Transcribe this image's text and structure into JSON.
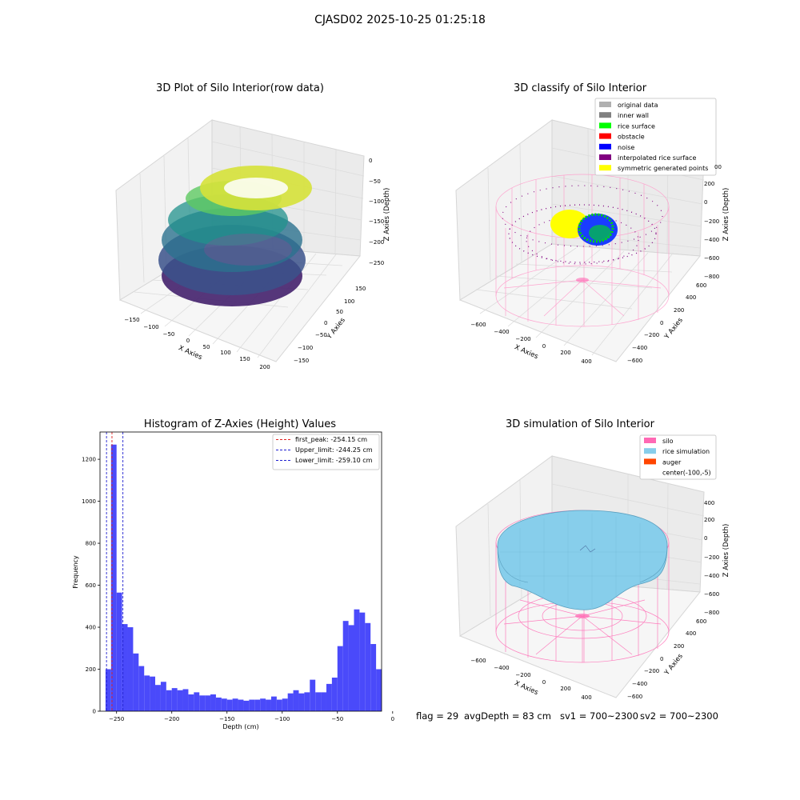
{
  "suptitle": "CJASD02 2025-10-25 01:25:18",
  "colors": {
    "hist_bar": "#4a4afa",
    "first_peak": "#e02020",
    "limits": "#2020d0",
    "silo": "#ff69b4",
    "rice": "#87ceeb",
    "auger": "#ff4500",
    "original": "#b0b0b0",
    "inner_wall": "#808080",
    "rice_surface": "#00ff00",
    "obstacle": "#ff0000",
    "noise": "#0000ff",
    "interpolated": "#800080",
    "symmetric": "#ffff00"
  },
  "panel1": {
    "title": "3D Plot of Silo Interior(row data)",
    "xlabel": "X Axies",
    "ylabel": "Y Axies",
    "zlabel": "Z Axies (Depth)",
    "xticks": [
      "−150",
      "−100",
      "−50",
      "0",
      "50",
      "100",
      "150",
      "200"
    ],
    "yticks": [
      "−150",
      "−100",
      "−50",
      "0",
      "50",
      "100",
      "150"
    ],
    "zticks": [
      "0",
      "−50",
      "−100",
      "−150",
      "−200",
      "−250"
    ]
  },
  "panel2": {
    "title": "3D classify of Silo Interior",
    "xlabel": "X Axies",
    "ylabel": "Y Axies",
    "zlabel": "Z Axies (Depth)",
    "xticks": [
      "−600",
      "−400",
      "−200",
      "0",
      "200",
      "400"
    ],
    "yticks": [
      "−600",
      "−400",
      "−200",
      "0",
      "200",
      "400",
      "600"
    ],
    "zticks": [
      "200",
      "0",
      "−200",
      "−400",
      "−600",
      "−800"
    ],
    "zticks_top_partial": "00",
    "legend": [
      {
        "label": "original data",
        "color": "#b0b0b0"
      },
      {
        "label": "inner wall",
        "color": "#808080"
      },
      {
        "label": "rice surface",
        "color": "#00ff00"
      },
      {
        "label": "obstacle",
        "color": "#ff0000"
      },
      {
        "label": "noise",
        "color": "#0000ff"
      },
      {
        "label": "interpolated rice surface",
        "color": "#800080"
      },
      {
        "label": "symmetric generated points",
        "color": "#ffff00"
      }
    ]
  },
  "panel4": {
    "title": "3D simulation of Silo Interior",
    "xlabel": "X Axies",
    "ylabel": "Y Axies",
    "zlabel": "Z Axies (Depth)",
    "xticks": [
      "−600",
      "−400",
      "−200",
      "0",
      "200",
      "400"
    ],
    "yticks": [
      "−600",
      "−400",
      "−200",
      "0",
      "200",
      "400",
      "600"
    ],
    "zticks": [
      "400",
      "200",
      "0",
      "−200",
      "−400",
      "−600",
      "−800"
    ],
    "legend": [
      {
        "label": "silo",
        "color": "#ff69b4"
      },
      {
        "label": "rice simulation",
        "color": "#87ceeb"
      },
      {
        "label": "auger",
        "color": "#ff4500"
      },
      {
        "label": "center(-100,-5)",
        "color": "none"
      }
    ]
  },
  "chart_data": {
    "type": "bar",
    "title": "Histogram of Z-Axies (Height) Values",
    "xlabel": "Depth (cm)",
    "ylabel": "Frequency",
    "xlim": [
      -265,
      -10
    ],
    "ylim": [
      0,
      1330
    ],
    "xticks": [
      -250,
      -200,
      -150,
      -100,
      -50,
      0
    ],
    "yticks": [
      0,
      200,
      400,
      600,
      800,
      1000,
      1200
    ],
    "bin_width": 5,
    "bin_start": -260,
    "values": [
      200,
      1270,
      565,
      415,
      400,
      275,
      215,
      170,
      165,
      125,
      140,
      100,
      110,
      100,
      105,
      80,
      90,
      75,
      75,
      80,
      65,
      60,
      55,
      60,
      55,
      50,
      55,
      55,
      60,
      55,
      70,
      55,
      60,
      85,
      100,
      85,
      90,
      150,
      90,
      90,
      130,
      160,
      310,
      430,
      410,
      485,
      470,
      420,
      320,
      200
    ],
    "lines": [
      {
        "name": "first_peak: -254.15 cm",
        "x": -254.15,
        "color": "#e02020"
      },
      {
        "name": "Upper_limit: -244.25 cm",
        "x": -244.25,
        "color": "#2020d0"
      },
      {
        "name": "Lower_limit: -259.10 cm",
        "x": -259.1,
        "color": "#2020d0"
      }
    ]
  },
  "footer": {
    "flag": "flag = 29",
    "avg": "avgDepth = 83 cm",
    "sv1": "sv1 = 700~2300",
    "sv2": "sv2 = 700~2300"
  }
}
